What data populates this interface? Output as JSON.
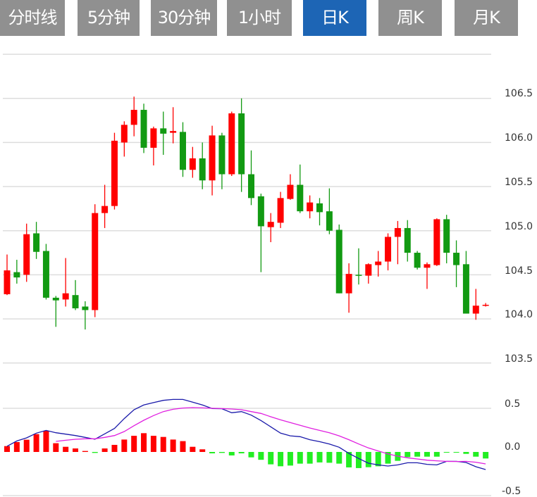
{
  "tabs": [
    {
      "label": "分时线",
      "active": false
    },
    {
      "label": "5分钟",
      "active": false
    },
    {
      "label": "30分钟",
      "active": false
    },
    {
      "label": "1小时",
      "active": false
    },
    {
      "label": "日K",
      "active": true
    },
    {
      "label": "周K",
      "active": false
    },
    {
      "label": "月K",
      "active": false
    }
  ],
  "colors": {
    "tab_bg": "#909090",
    "tab_active": "#1d65b5",
    "up": "#ff0000",
    "down": "#129a12",
    "hist_up": "#ff0000",
    "hist_down": "#22ee22",
    "dif": "#1a1aaa",
    "dea": "#e020e0"
  },
  "chart_data": [
    {
      "type": "candlestick",
      "yticks": [
        "106.5",
        "106.0",
        "105.5",
        "105.0",
        "104.5",
        "104.0",
        "103.5"
      ],
      "ylim": [
        103.5,
        107.0
      ],
      "grid": true,
      "ohlc": [
        [
          104.28,
          104.55,
          104.73,
          104.27
        ],
        [
          104.53,
          104.47,
          104.67,
          104.4
        ],
        [
          104.5,
          104.96,
          105.08,
          104.42
        ],
        [
          104.97,
          104.76,
          105.1,
          104.68
        ],
        [
          104.77,
          104.24,
          104.85,
          104.22
        ],
        [
          104.24,
          104.21,
          104.26,
          103.91
        ],
        [
          104.22,
          104.29,
          104.69,
          104.14
        ],
        [
          104.27,
          104.12,
          104.44,
          104.1
        ],
        [
          104.14,
          104.1,
          104.2,
          103.88
        ],
        [
          104.1,
          105.2,
          105.3,
          104.02
        ],
        [
          105.2,
          105.28,
          105.52,
          105.03
        ],
        [
          105.28,
          106.02,
          106.11,
          105.24
        ],
        [
          106.0,
          106.2,
          106.24,
          105.84
        ],
        [
          106.2,
          106.37,
          106.52,
          106.07
        ],
        [
          106.37,
          105.94,
          106.44,
          105.88
        ],
        [
          105.94,
          106.16,
          106.18,
          105.74
        ],
        [
          106.16,
          106.1,
          106.35,
          105.86
        ],
        [
          106.11,
          106.13,
          106.4,
          105.99
        ],
        [
          106.12,
          105.69,
          106.23,
          105.61
        ],
        [
          105.69,
          105.82,
          105.95,
          105.6
        ],
        [
          105.82,
          105.57,
          106.0,
          105.47
        ],
        [
          105.57,
          106.08,
          106.19,
          105.4
        ],
        [
          106.08,
          105.64,
          106.11,
          105.47
        ],
        [
          105.64,
          106.33,
          106.35,
          105.62
        ],
        [
          106.33,
          105.64,
          106.5,
          105.44
        ],
        [
          105.64,
          105.37,
          105.91,
          105.29
        ],
        [
          105.39,
          105.05,
          105.42,
          104.53
        ],
        [
          105.04,
          105.1,
          105.2,
          104.87
        ],
        [
          105.09,
          105.37,
          105.44,
          105.03
        ],
        [
          105.36,
          105.52,
          105.64,
          105.35
        ],
        [
          105.52,
          105.22,
          105.75,
          105.2
        ],
        [
          105.22,
          105.32,
          105.4,
          105.14
        ],
        [
          105.31,
          105.21,
          105.37,
          105.06
        ],
        [
          105.22,
          105.0,
          105.48,
          104.96
        ],
        [
          105.01,
          104.29,
          105.07,
          104.29
        ],
        [
          104.29,
          104.51,
          104.63,
          104.07
        ],
        [
          104.5,
          104.49,
          104.8,
          104.39
        ],
        [
          104.49,
          104.62,
          104.63,
          104.4
        ],
        [
          104.61,
          104.65,
          104.77,
          104.48
        ],
        [
          104.65,
          104.93,
          104.97,
          104.55
        ],
        [
          104.93,
          105.03,
          105.11,
          104.62
        ],
        [
          105.03,
          104.75,
          105.12,
          104.65
        ],
        [
          104.75,
          104.58,
          104.77,
          104.56
        ],
        [
          104.58,
          104.62,
          104.64,
          104.34
        ],
        [
          104.61,
          105.13,
          105.14,
          104.6
        ],
        [
          105.13,
          104.75,
          105.18,
          104.63
        ],
        [
          104.75,
          104.61,
          104.89,
          104.36
        ],
        [
          104.62,
          104.06,
          104.77,
          104.06
        ],
        [
          104.06,
          104.15,
          104.34,
          103.99
        ],
        [
          104.15,
          104.16,
          104.18,
          104.14
        ]
      ]
    },
    {
      "type": "macd",
      "yticks": [
        "0.5",
        "0.0",
        "-0.5"
      ],
      "ylim": [
        -0.5,
        0.5
      ],
      "histogram": [
        0.067,
        0.113,
        0.14,
        0.204,
        0.242,
        0.1,
        0.059,
        0.04,
        0.011,
        -0.011,
        0.04,
        0.081,
        0.142,
        0.185,
        0.215,
        0.185,
        0.172,
        0.142,
        0.124,
        0.059,
        0.03,
        -0.016,
        -0.011,
        -0.04,
        -0.016,
        -0.062,
        -0.09,
        -0.142,
        -0.164,
        -0.156,
        -0.134,
        -0.134,
        -0.12,
        -0.124,
        -0.134,
        -0.177,
        -0.185,
        -0.175,
        -0.164,
        -0.134,
        -0.102,
        -0.059,
        -0.054,
        -0.054,
        -0.054,
        -0.008,
        -0.005,
        -0.022,
        -0.054,
        -0.075
      ],
      "dif": [
        0.065,
        0.126,
        0.161,
        0.215,
        0.247,
        0.22,
        0.204,
        0.188,
        0.167,
        0.145,
        0.207,
        0.269,
        0.382,
        0.484,
        0.538,
        0.565,
        0.591,
        0.602,
        0.602,
        0.57,
        0.538,
        0.497,
        0.495,
        0.449,
        0.462,
        0.422,
        0.36,
        0.288,
        0.215,
        0.185,
        0.175,
        0.14,
        0.118,
        0.091,
        0.054,
        -0.016,
        -0.075,
        -0.129,
        -0.148,
        -0.161,
        -0.148,
        -0.124,
        -0.124,
        -0.142,
        -0.148,
        -0.108,
        -0.108,
        -0.121,
        -0.169,
        -0.202
      ],
      "dea": [
        null,
        null,
        null,
        null,
        null,
        0.121,
        0.134,
        0.145,
        0.151,
        0.151,
        0.167,
        0.188,
        0.234,
        0.301,
        0.363,
        0.417,
        0.462,
        0.489,
        0.503,
        0.508,
        0.505,
        0.5,
        0.497,
        0.492,
        0.484,
        0.462,
        0.441,
        0.403,
        0.368,
        0.336,
        0.306,
        0.274,
        0.247,
        0.22,
        0.185,
        0.14,
        0.091,
        0.046,
        0.011,
        -0.022,
        -0.048,
        -0.067,
        -0.081,
        -0.094,
        -0.102,
        -0.108,
        -0.11,
        -0.108,
        -0.118,
        -0.137
      ]
    }
  ]
}
